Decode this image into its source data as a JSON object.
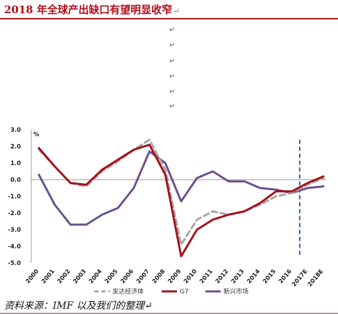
{
  "header": {
    "title": "2018 年全球产出缺口有望明显收窄",
    "title_mark": "↵",
    "paragraph_marks": [
      "↵",
      "↵",
      "↵",
      "↵",
      "↵",
      "↵"
    ]
  },
  "footer": {
    "source": "资料来源：IMF 以及我们的整理",
    "source_mark": "↵"
  },
  "chart_data": {
    "type": "line",
    "ylabel": "%",
    "ylim": [
      -5.0,
      3.0
    ],
    "yticks": [
      "3.0",
      "2.0",
      "1.0",
      "0.0",
      "-1.0",
      "-2.0",
      "-3.0",
      "-4.0",
      "-5.0"
    ],
    "categories": [
      "2000",
      "2001",
      "2002",
      "2003",
      "2004",
      "2005",
      "2006",
      "2007",
      "2008",
      "2009",
      "2010",
      "2011",
      "2012",
      "2013",
      "2014",
      "2015",
      "2016",
      "2017E",
      "2018E"
    ],
    "forecast_marker_between": [
      "2016",
      "2017E"
    ],
    "legend_position": "bottom",
    "series": [
      {
        "name": "发达经济体",
        "color": "#a6a6a6",
        "dash": true,
        "values": [
          1.8,
          0.8,
          -0.2,
          -0.4,
          0.5,
          1.1,
          1.8,
          2.4,
          0.6,
          -3.9,
          -2.4,
          -1.9,
          -2.1,
          -1.9,
          -1.5,
          -1.0,
          -0.8,
          -0.3,
          0.1
        ]
      },
      {
        "name": "G7",
        "color": "#a50f1a",
        "dash": false,
        "values": [
          1.9,
          0.8,
          -0.2,
          -0.3,
          0.6,
          1.2,
          1.8,
          2.1,
          0.3,
          -4.6,
          -3.0,
          -2.4,
          -2.1,
          -1.9,
          -1.4,
          -0.7,
          -0.7,
          -0.2,
          0.2
        ]
      },
      {
        "name": "新兴市场",
        "color": "#6a4f8c",
        "dash": false,
        "values": [
          0.3,
          -1.5,
          -2.7,
          -2.7,
          -2.1,
          -1.7,
          -0.5,
          1.7,
          1.0,
          -1.3,
          0.1,
          0.5,
          -0.1,
          -0.1,
          -0.5,
          -0.6,
          -0.8,
          -0.5,
          -0.4
        ]
      }
    ]
  }
}
